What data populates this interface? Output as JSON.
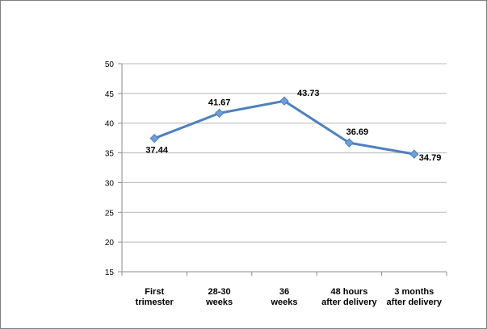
{
  "chart_data": {
    "type": "line",
    "categories": [
      [
        "First",
        "trimester"
      ],
      [
        "28-30",
        "weeks"
      ],
      [
        "36",
        "weeks"
      ],
      [
        "48 hours",
        "after delivery"
      ],
      [
        "3 months",
        "after delivery"
      ]
    ],
    "series": [
      {
        "values": [
          37.44,
          41.67,
          43.73,
          36.69,
          34.79
        ],
        "color": "#4f81bd"
      }
    ],
    "data_labels": [
      "37.44",
      "41.67",
      "43.73",
      "36.69",
      "34.79"
    ],
    "ylim": [
      15,
      50
    ],
    "yticks": [
      15,
      20,
      25,
      30,
      35,
      40,
      45,
      50
    ],
    "grid": true,
    "legend": "none",
    "title": "",
    "xlabel": "",
    "ylabel": "",
    "colors": {
      "line": "#4f81bd",
      "marker": "#6f9fd8",
      "grid": "#b7b7b7",
      "axis": "#8c8c8c",
      "text": "#000000"
    }
  }
}
